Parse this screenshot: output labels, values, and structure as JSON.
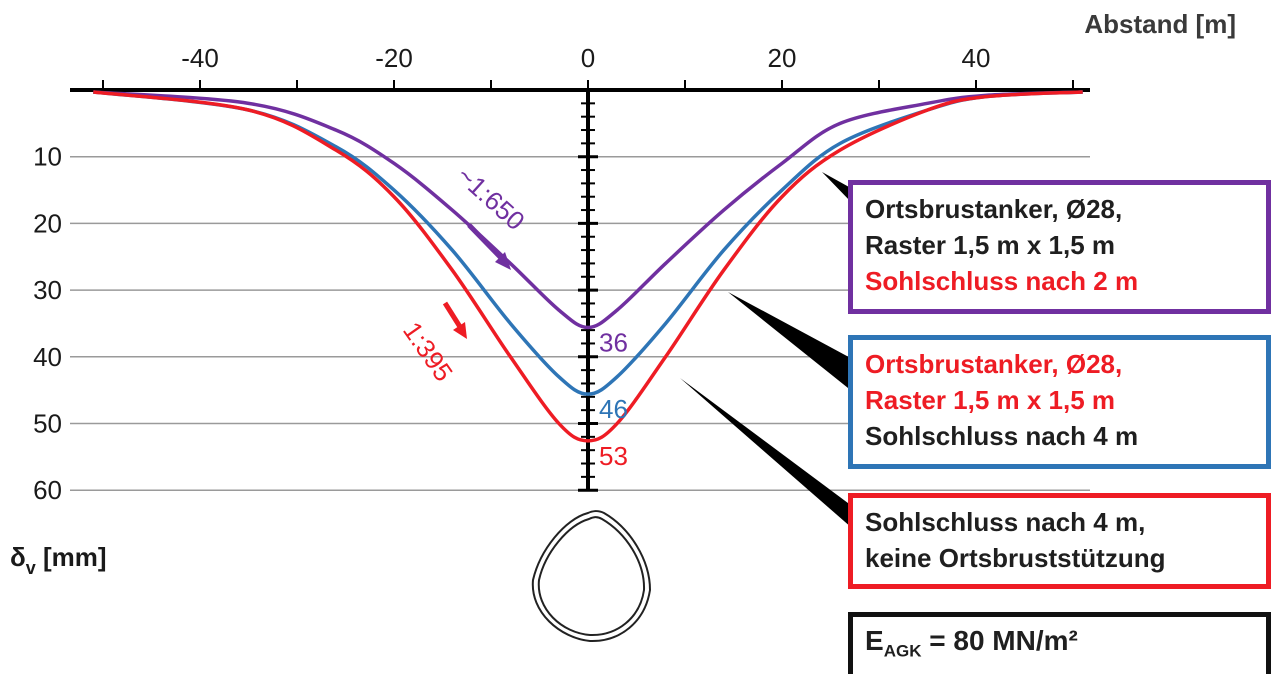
{
  "chart_data": {
    "type": "line",
    "xlabel": "Abstand [m]",
    "ylabel_symbol": "δ",
    "ylabel_sub": "v",
    "ylabel_unit": " [mm]",
    "x_ticks": [
      -40,
      -20,
      0,
      20,
      40
    ],
    "y_ticks": [
      10,
      20,
      30,
      40,
      50,
      60
    ],
    "xlim": [
      -52,
      52
    ],
    "ylim": [
      0,
      60
    ],
    "y_inverted": true,
    "grid": "horizontal",
    "series": [
      {
        "name": "Ortsbrustanker, Ø28, Raster 1,5 m x 1,5 m, Sohlschluss nach 2 m",
        "color": "#7030a0",
        "end_label": "36",
        "x": [
          -51,
          -35,
          -26,
          -20,
          -14,
          -8,
          -3,
          0,
          3,
          8,
          14,
          20,
          26,
          35,
          41,
          51
        ],
        "y": [
          0.3,
          2,
          6,
          11,
          18,
          26,
          33,
          35.6,
          33,
          26,
          18,
          11,
          5,
          2,
          0.8,
          0.3
        ]
      },
      {
        "name": "Ortsbrustanker, Ø28, Raster 1,5 m x 1,5 m, Sohlschluss nach 4 m",
        "color": "#2e75b6",
        "end_label": "46",
        "x": [
          -51,
          -35,
          -26,
          -20,
          -14,
          -8,
          -3,
          0,
          3,
          8,
          14,
          20,
          26,
          35,
          41,
          51
        ],
        "y": [
          0.3,
          3,
          8.5,
          15,
          24,
          35,
          43,
          45.6,
          43,
          35,
          24,
          15,
          8,
          3,
          1,
          0.3
        ]
      },
      {
        "name": "Sohlschluss nach 4 m, keine Ortsbruststützung",
        "color": "#ee1c24",
        "end_label": "53",
        "x": [
          -51,
          -35,
          -26,
          -20,
          -14,
          -8,
          -3,
          0,
          3,
          8,
          14,
          20,
          26,
          35,
          41,
          51
        ],
        "y": [
          0.3,
          3,
          9,
          16,
          27,
          40,
          50,
          52.6,
          50,
          40,
          27,
          16,
          9,
          3,
          1,
          0.3
        ]
      }
    ],
    "annotations": [
      {
        "text": "~1:650",
        "color": "#7030a0"
      },
      {
        "text": "1:395",
        "color": "#ee1c24"
      }
    ]
  },
  "legend": {
    "box1": {
      "line1": "Ortsbrustanker, Ø28,",
      "line2": "Raster 1,5 m x 1,5 m",
      "line3": "Sohlschluss nach 2 m",
      "border_color": "#7030a0",
      "accent_color": "#ee1c24"
    },
    "box2": {
      "line1": "Ortsbrustanker, Ø28,",
      "line2": "Raster 1,5 m x 1,5 m",
      "line3": "Sohlschluss nach 4 m",
      "border_color": "#2e75b6",
      "accent_color": "#ee1c24"
    },
    "box3": {
      "line1": "Sohlschluss nach 4 m,",
      "line2": "keine Ortsbruststützung",
      "border_color": "#ee1c24"
    },
    "box4": {
      "prefix": "E",
      "sub": "AGK",
      "suffix": " = 80 MN/m²"
    }
  }
}
